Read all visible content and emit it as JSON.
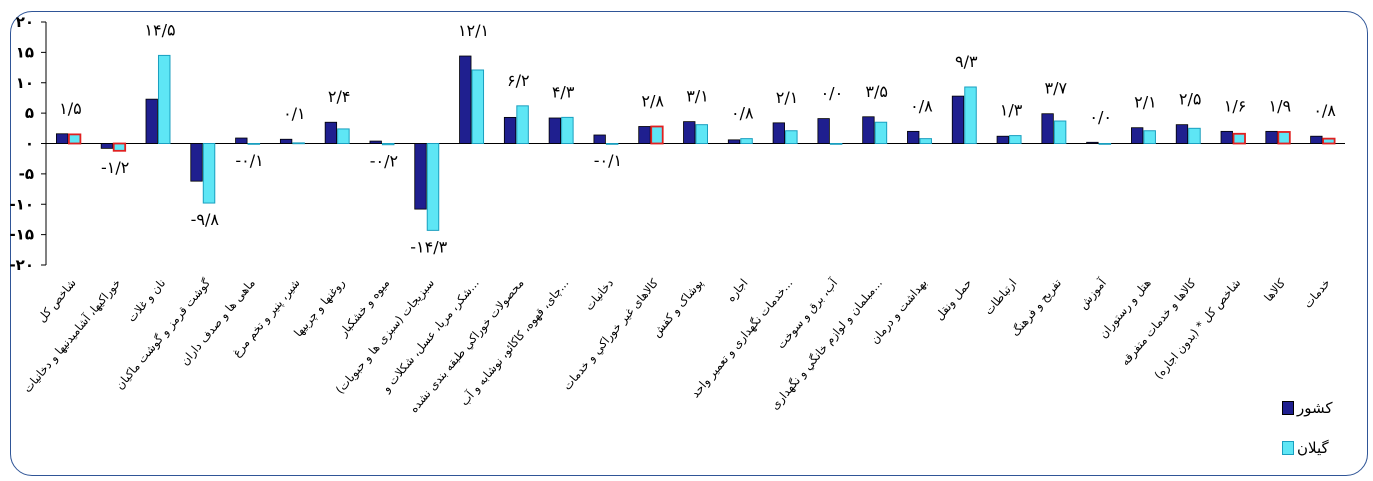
{
  "chart_data": {
    "type": "bar",
    "ylim": [
      -20,
      20
    ],
    "yticks": [
      "-۲۰",
      "-۱۵",
      "-۱۰",
      "-۵",
      "۰",
      "۵",
      "۱۰",
      "۱۵",
      "۲۰"
    ],
    "categories": [
      "شاخص کل",
      "خوراکیها، آشامیدنیها و دخانیات",
      "نان و غلات",
      "گوشت قرمز و گوشت ماکیان",
      "ماهی ها و صدف داران",
      "شیر، پنیر و تخم مرغ",
      "روغنها و چربیها",
      "میوه و خشکبار",
      "سبزیجات (سبزی ها و حبوبات)",
      "شکر، مربا، عسل، شکلات و...",
      "محصولات خوراکي طبقه بندی نشده",
      "چای، قهوه، کاکائو، نوشابه و آب...",
      "دخانیات",
      "کالاهای غیر خوراکي و خدمات",
      "پوشاک و کفش",
      "اجاره",
      "خدمات نگهداری و تعمیر واحد...",
      "آب، برق و سوخت",
      "مبلمان و لوازم خانگي و نگهداری...",
      "بهداشت و درمان",
      "حمل ونقل",
      "ارتباطات",
      "تفریح و فرهنگ",
      "آموزش",
      "هتل و رستوران",
      "کالاها و خدمات متفرقه",
      "شاخص کل * (بدون اجاره)",
      "کالاها",
      "خدمات"
    ],
    "series": [
      {
        "name": "کشور",
        "color": "#1f1f8f",
        "values": [
          1.6,
          -0.8,
          7.3,
          -6.2,
          0.9,
          0.7,
          3.5,
          0.4,
          -10.8,
          14.4,
          4.3,
          4.2,
          1.4,
          2.8,
          3.6,
          0.6,
          3.4,
          4.1,
          4.4,
          2.0,
          7.8,
          1.2,
          4.9,
          0.2,
          2.6,
          3.1,
          2.0,
          2.0,
          1.2
        ]
      },
      {
        "name": "گیلان",
        "color": "#5ee6f5",
        "values": [
          1.5,
          -1.2,
          14.5,
          -9.8,
          -0.1,
          0.1,
          2.4,
          -0.2,
          -14.3,
          12.1,
          6.2,
          4.3,
          -0.1,
          2.8,
          3.1,
          0.8,
          2.1,
          0.0,
          3.5,
          0.8,
          9.3,
          1.3,
          3.7,
          0.0,
          2.1,
          2.5,
          1.6,
          1.9,
          0.8
        ]
      }
    ],
    "data_labels": [
      "۱/۵",
      "-۱/۲",
      "۱۴/۵",
      "-۹/۸",
      "-۰/۱",
      "۰/۱",
      "۲/۴",
      "-۰/۲",
      "-۱۴/۳",
      "۱۲/۱",
      "۶/۲",
      "۴/۳",
      "-۰/۱",
      "۲/۸",
      "۳/۱",
      "۰/۸",
      "۲/۱",
      "۰/۰",
      "۳/۵",
      "۰/۸",
      "۹/۳",
      "۱/۳",
      "۳/۷",
      "۰/۰",
      "۲/۱",
      "۲/۵",
      "۱/۶",
      "۱/۹",
      "۰/۸"
    ],
    "red_outlined_categories": [
      0,
      1,
      13,
      26,
      27,
      28
    ],
    "red_outline_color": "#e02020",
    "grid": false,
    "legend": "bottom-right"
  },
  "legend": {
    "items": [
      {
        "label": "کشور",
        "color": "#1f1f8f",
        "border": "#000000"
      },
      {
        "label": "گیلان",
        "color": "#5ee6f5",
        "border": "#1a9fbf"
      }
    ]
  }
}
